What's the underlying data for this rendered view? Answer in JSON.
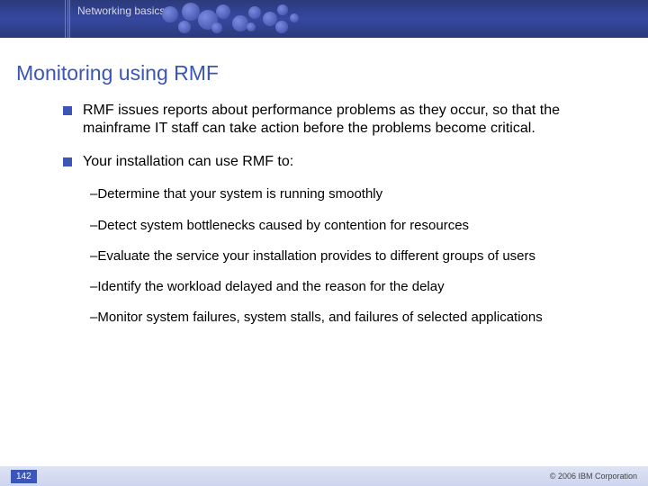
{
  "header": {
    "tab_label": "Networking basics",
    "bg_gradient": [
      "#2a3a7a",
      "#3648a0",
      "#2a3a7a"
    ]
  },
  "title": "Monitoring using RMF",
  "bullets": [
    {
      "text": "RMF issues reports about performance problems as they occur, so that the mainframe IT staff can take action before the problems become critical."
    },
    {
      "text": "Your installation can use RMF to:",
      "sub": [
        "Determine that your system is running smoothly",
        "Detect system bottlenecks caused by contention for resources",
        "Evaluate the service your installation provides to different groups of users",
        "Identify the workload delayed and the reason for the delay",
        "Monitor system failures, system stalls, and failures of selected applications"
      ]
    }
  ],
  "footer": {
    "page_number": "142",
    "copyright": "© 2006 IBM Corporation"
  },
  "dots": [
    {
      "l": 0,
      "t": 4,
      "s": 18
    },
    {
      "l": 22,
      "t": 0,
      "s": 20
    },
    {
      "l": 18,
      "t": 20,
      "s": 14
    },
    {
      "l": 40,
      "t": 8,
      "s": 22
    },
    {
      "l": 60,
      "t": 2,
      "s": 16
    },
    {
      "l": 55,
      "t": 22,
      "s": 12
    },
    {
      "l": 78,
      "t": 14,
      "s": 18
    },
    {
      "l": 96,
      "t": 4,
      "s": 14
    },
    {
      "l": 94,
      "t": 22,
      "s": 10
    },
    {
      "l": 112,
      "t": 10,
      "s": 16
    },
    {
      "l": 128,
      "t": 2,
      "s": 12
    },
    {
      "l": 126,
      "t": 20,
      "s": 14
    },
    {
      "l": 142,
      "t": 12,
      "s": 10
    }
  ],
  "colors": {
    "title_color": "#3b55b8",
    "bullet_square": "#3b55b8",
    "footer_bg": [
      "#dfe4f3",
      "#ccd4ef"
    ],
    "pagenum_bg": "#3b55b8"
  }
}
